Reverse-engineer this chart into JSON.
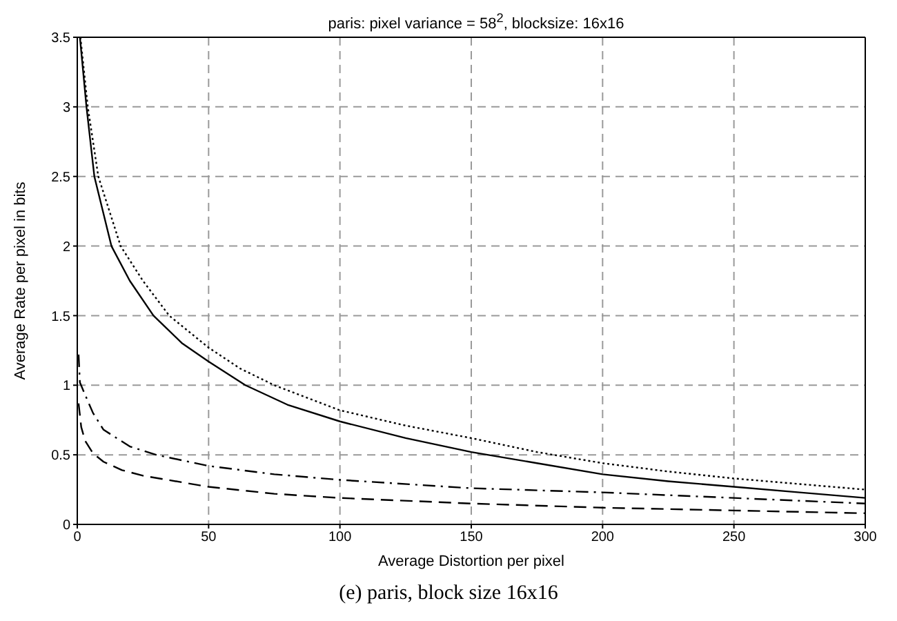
{
  "chart_data": {
    "type": "line",
    "title": "paris: pixel variance = 58$^{2}$, blocksize: 16x16",
    "xlabel": "Average Distortion per pixel",
    "ylabel": "Average Rate per pixel in bits",
    "annotations": [
      "(e) paris, block size 16x16"
    ],
    "xlim": [
      0,
      300
    ],
    "ylim": [
      0,
      3.5
    ],
    "xticks": [
      0,
      50,
      100,
      150,
      200,
      250,
      300
    ],
    "yticks": [
      0,
      0.5,
      1,
      1.5,
      2,
      2.5,
      3,
      3.5
    ],
    "grid": true,
    "marker": "none",
    "series": [
      {
        "color": "#000000",
        "line_style": "solid",
        "x": [
          1,
          3.5,
          6.5,
          13,
          20,
          29,
          40,
          50,
          64,
          80,
          100,
          125,
          150,
          175,
          200,
          225,
          250,
          275,
          300
        ],
        "values": [
          3.5,
          3,
          2.5,
          2,
          1.75,
          1.5,
          1.3,
          1.17,
          1,
          0.86,
          0.74,
          0.62,
          0.52,
          0.44,
          0.36,
          0.31,
          0.27,
          0.23,
          0.19
        ]
      },
      {
        "color": "#000000",
        "line_style": "dotted",
        "x": [
          1.2,
          4,
          8,
          16.5,
          25,
          35,
          50,
          62,
          75,
          100,
          125,
          150,
          175,
          200,
          225,
          250,
          275,
          300
        ],
        "values": [
          3.5,
          3,
          2.5,
          2,
          1.75,
          1.5,
          1.27,
          1.12,
          1,
          0.82,
          0.71,
          0.62,
          0.52,
          0.44,
          0.38,
          0.33,
          0.29,
          0.25
        ]
      },
      {
        "color": "#000000",
        "line_style": "dashdot",
        "x": [
          0.5,
          1,
          3,
          6,
          10,
          20,
          30,
          50,
          75,
          100,
          150,
          200,
          250,
          300
        ],
        "values": [
          1.22,
          1.02,
          0.93,
          0.8,
          0.68,
          0.56,
          0.5,
          0.42,
          0.36,
          0.32,
          0.26,
          0.23,
          0.19,
          0.15
        ]
      },
      {
        "color": "#000000",
        "line_style": "dashed",
        "x": [
          0.5,
          1.5,
          3,
          6,
          10,
          17,
          25,
          50,
          75,
          100,
          150,
          200,
          250,
          300
        ],
        "values": [
          0.87,
          0.7,
          0.6,
          0.51,
          0.45,
          0.39,
          0.35,
          0.27,
          0.22,
          0.19,
          0.15,
          0.12,
          0.1,
          0.08
        ]
      }
    ]
  }
}
